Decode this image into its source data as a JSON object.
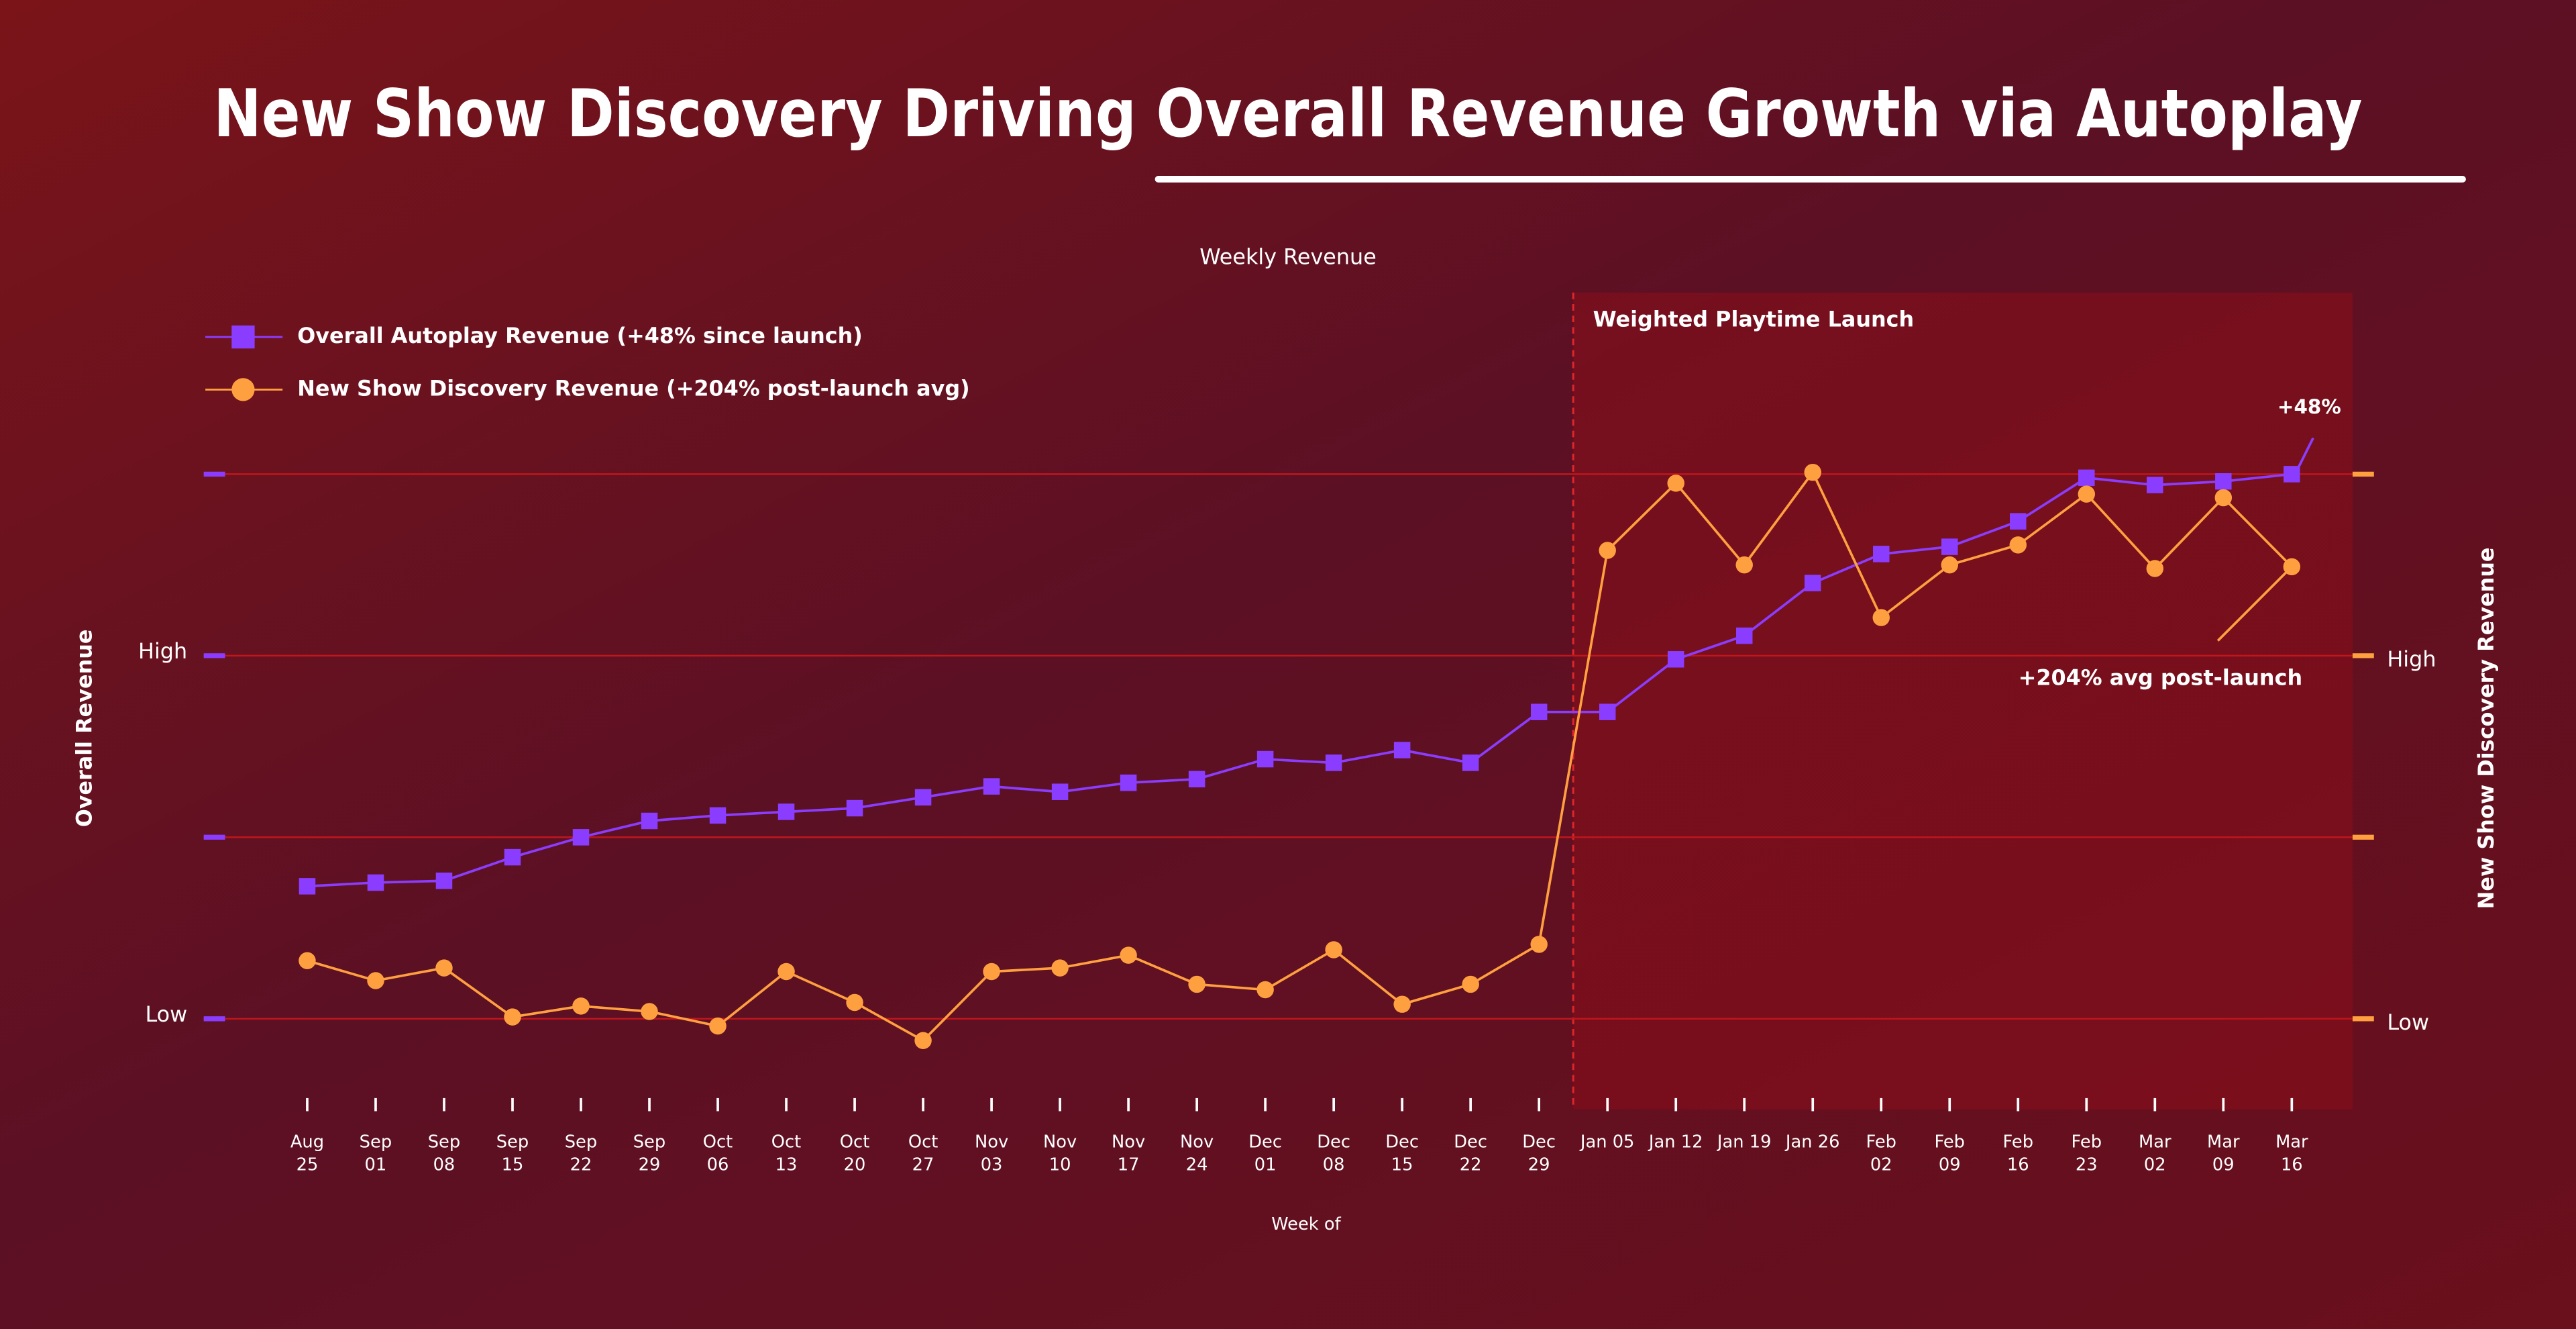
{
  "chart_data": {
    "type": "line",
    "title": "New Show Discovery Driving Overall Revenue Growth via Autoplay",
    "subtitle": "Weekly Revenue",
    "xlabel": "Week of",
    "ylabel": "Overall Revenue",
    "y2label": "New Show Discovery Revenue",
    "categories": [
      "Aug 25",
      "Sep 01",
      "Sep 08",
      "Sep 15",
      "Sep 22",
      "Sep 29",
      "Oct 06",
      "Oct 13",
      "Oct 20",
      "Oct 27",
      "Nov 03",
      "Nov 10",
      "Nov 17",
      "Nov 24",
      "Dec 01",
      "Dec 08",
      "Dec 15",
      "Dec 22",
      "Dec 29",
      "Jan 05",
      "Jan 12",
      "Jan 19",
      "Jan 26",
      "Feb 02",
      "Feb 09",
      "Feb 16",
      "Feb 23",
      "Mar 02",
      "Mar 09",
      "Mar 16"
    ],
    "series": [
      {
        "name": "Overall Autoplay Revenue  (+48% since launch)",
        "color": "#8b3dff",
        "marker": "square",
        "axis": "y",
        "values": [
          0.73,
          0.75,
          0.76,
          0.89,
          1.0,
          1.09,
          1.12,
          1.14,
          1.16,
          1.22,
          1.28,
          1.25,
          1.3,
          1.32,
          1.43,
          1.41,
          1.48,
          1.41,
          1.69,
          1.69,
          1.98,
          2.11,
          2.4,
          2.56,
          2.6,
          2.74,
          2.98,
          2.94,
          2.96,
          3.0
        ]
      },
      {
        "name": "New Show Discovery Revenue  (+204% post-launch avg)",
        "color": "#ffa040",
        "marker": "circle",
        "axis": "y2",
        "values": [
          0.32,
          0.21,
          0.28,
          0.01,
          0.07,
          0.04,
          -0.04,
          0.26,
          0.09,
          -0.12,
          0.26,
          0.28,
          0.35,
          0.19,
          0.16,
          0.38,
          0.08,
          0.19,
          0.41,
          2.58,
          2.95,
          2.5,
          3.01,
          2.21,
          2.5,
          2.61,
          2.89,
          2.48,
          2.87,
          2.49
        ]
      }
    ],
    "ylim": [
      -0.5,
      4
    ],
    "yticks": [
      0,
      1,
      2,
      3
    ],
    "ytick_labels": [
      {
        "value": 0,
        "label": "Low"
      },
      {
        "value": 2,
        "label": "High"
      }
    ],
    "y2lim": [
      -0.5,
      4
    ],
    "y2ticks": [
      0,
      1,
      2,
      3
    ],
    "y2tick_labels": [
      {
        "value": 0,
        "label": "Low"
      },
      {
        "value": 2,
        "label": "High"
      }
    ],
    "grid": true,
    "legend": "top-left",
    "launch": {
      "label": "Weighted Playtime Launch",
      "after": "Dec 29"
    },
    "annotations": [
      {
        "text": "+48%",
        "series": 0,
        "color": "#8b3dff"
      },
      {
        "text": "+204% avg post-launch",
        "series": 1,
        "color": "#ffa040"
      }
    ]
  }
}
